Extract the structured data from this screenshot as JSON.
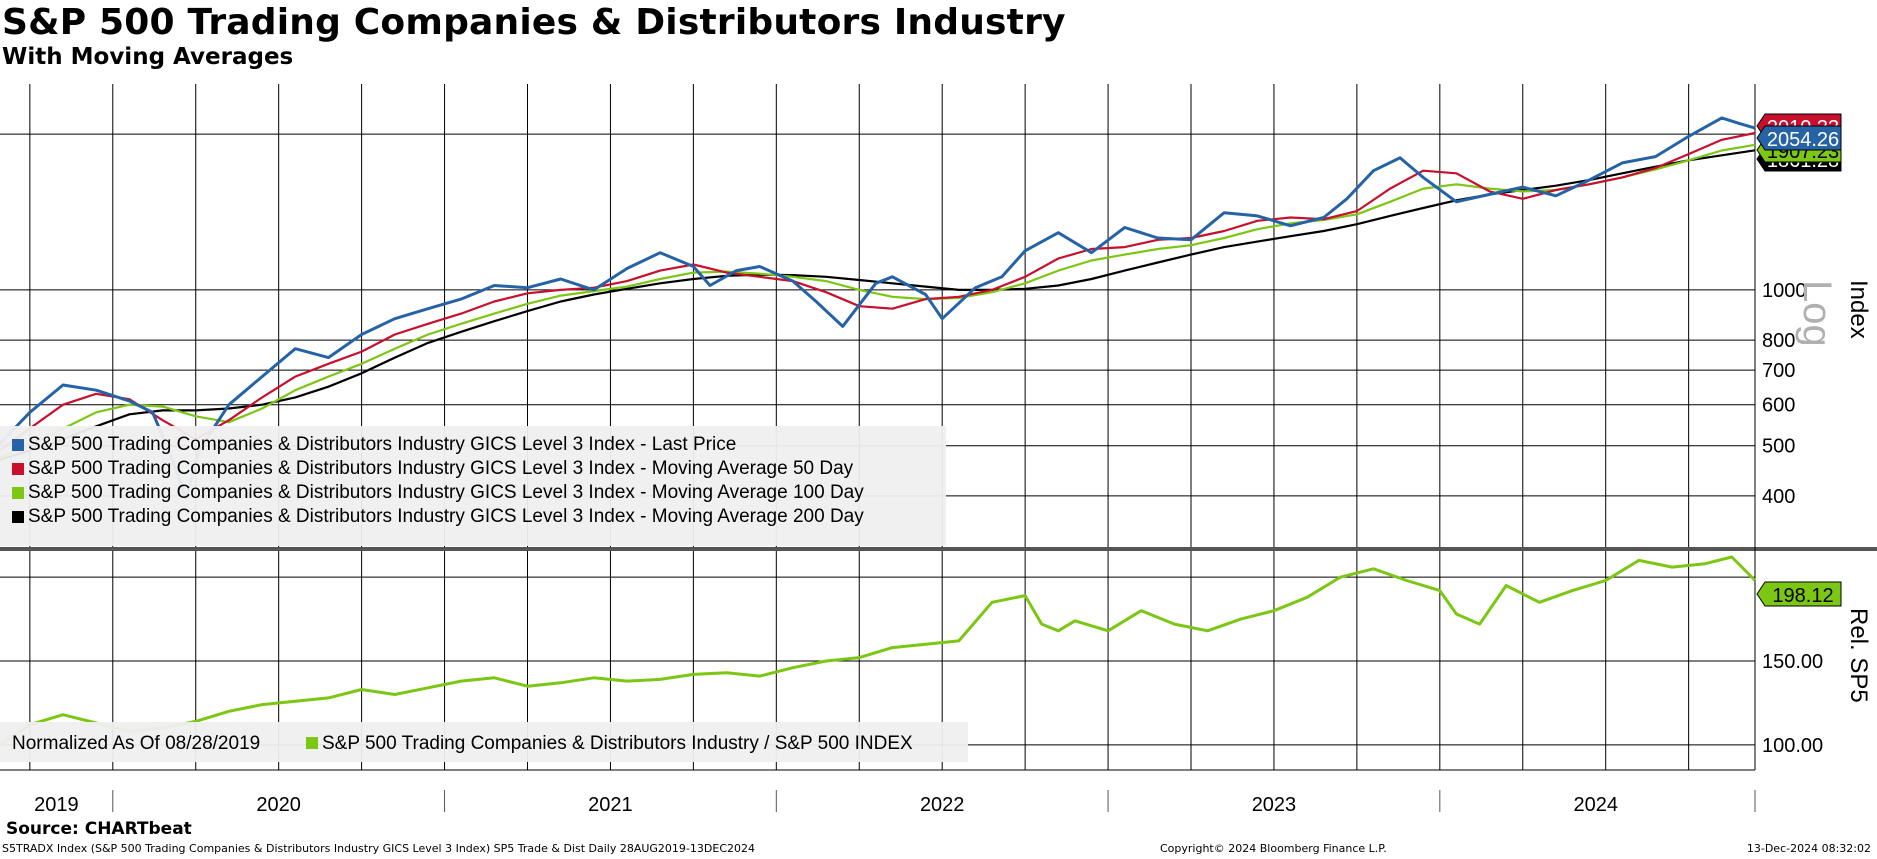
{
  "title": "S&P 500 Trading Companies & Distributors Industry",
  "subtitle": "With Moving Averages",
  "source": "Source: CHARTbeat",
  "footer": {
    "left": "S5TRADX Index (S&P 500 Trading Companies & Distributors Industry GICS Level 3 Index) SP5 Trade & Dist  Daily 28AUG2019-13DEC2024",
    "center": "Copyright© 2024 Bloomberg Finance L.P.",
    "right": "13-Dec-2024 08:32:02"
  },
  "colors": {
    "last_price": "#2563a6",
    "ma50": "#c8102e",
    "ma100": "#7cc614",
    "ma200": "#000000",
    "relative": "#7cc614",
    "grid": "#000000",
    "legend_bg": "#f0f0f0"
  },
  "chart_data": [
    {
      "type": "line",
      "panel": "upper",
      "y_axis_label": "Index",
      "scale_label": "Log",
      "y_scale": "log",
      "ylim": [
        320,
        2500
      ],
      "y_ticks": [
        400,
        500,
        600,
        700,
        800,
        1000
      ],
      "x_range": [
        2019.66,
        2024.95
      ],
      "x_tick_labels": [
        "2019",
        "2020",
        "2021",
        "2022",
        "2023",
        "2024"
      ],
      "grid": true,
      "legend_position": "bottom-left",
      "series": [
        {
          "name": "S&P 500 Trading Companies & Distributors Industry GICS Level 3 Index - Last Price",
          "color": "#2563a6",
          "last_value": "2054.26",
          "x": [
            2019.66,
            2019.75,
            2019.85,
            2019.95,
            2020.05,
            2020.12,
            2020.18,
            2020.22,
            2020.26,
            2020.35,
            2020.45,
            2020.55,
            2020.65,
            2020.75,
            2020.85,
            2020.95,
            2021.05,
            2021.15,
            2021.25,
            2021.35,
            2021.45,
            2021.55,
            2021.65,
            2021.75,
            2021.8,
            2021.88,
            2021.95,
            2022.05,
            2022.12,
            2022.2,
            2022.3,
            2022.35,
            2022.45,
            2022.5,
            2022.6,
            2022.68,
            2022.75,
            2022.85,
            2022.95,
            2023.05,
            2023.15,
            2023.25,
            2023.35,
            2023.45,
            2023.55,
            2023.65,
            2023.72,
            2023.8,
            2023.88,
            2023.95,
            2024.05,
            2024.15,
            2024.25,
            2024.35,
            2024.45,
            2024.55,
            2024.65,
            2024.75,
            2024.85,
            2024.9,
            2024.95
          ],
          "y": [
            505,
            580,
            655,
            640,
            610,
            580,
            470,
            395,
            490,
            600,
            680,
            770,
            740,
            820,
            880,
            920,
            960,
            1020,
            1010,
            1050,
            1000,
            1100,
            1180,
            1110,
            1020,
            1090,
            1110,
            1040,
            950,
            850,
            1030,
            1060,
            980,
            880,
            1010,
            1060,
            1190,
            1290,
            1180,
            1320,
            1260,
            1250,
            1410,
            1390,
            1330,
            1380,
            1500,
            1700,
            1800,
            1650,
            1480,
            1530,
            1580,
            1520,
            1630,
            1760,
            1810,
            1980,
            2150,
            2100,
            2054.26
          ]
        },
        {
          "name": "S&P 500 Trading Companies & Distributors Industry GICS Level 3 Index - Moving Average 50 Day",
          "color": "#c8102e",
          "last_value": "2010.33",
          "x": [
            2019.66,
            2019.75,
            2019.85,
            2019.95,
            2020.05,
            2020.15,
            2020.25,
            2020.35,
            2020.45,
            2020.55,
            2020.65,
            2020.75,
            2020.85,
            2020.95,
            2021.05,
            2021.15,
            2021.25,
            2021.35,
            2021.45,
            2021.55,
            2021.65,
            2021.75,
            2021.85,
            2021.95,
            2022.05,
            2022.15,
            2022.25,
            2022.35,
            2022.45,
            2022.55,
            2022.65,
            2022.75,
            2022.85,
            2022.95,
            2023.05,
            2023.15,
            2023.25,
            2023.35,
            2023.45,
            2023.55,
            2023.65,
            2023.75,
            2023.85,
            2023.95,
            2024.05,
            2024.15,
            2024.25,
            2024.35,
            2024.45,
            2024.55,
            2024.65,
            2024.75,
            2024.85,
            2024.95
          ],
          "y": [
            490,
            540,
            600,
            630,
            615,
            560,
            515,
            560,
            620,
            680,
            720,
            760,
            820,
            860,
            900,
            950,
            985,
            1000,
            1010,
            1040,
            1090,
            1120,
            1080,
            1060,
            1040,
            990,
            930,
            920,
            960,
            970,
            1000,
            1060,
            1150,
            1200,
            1210,
            1250,
            1260,
            1300,
            1360,
            1380,
            1370,
            1420,
            1570,
            1700,
            1680,
            1550,
            1500,
            1560,
            1600,
            1650,
            1720,
            1830,
            1950,
            2010.33
          ]
        },
        {
          "name": "S&P 500 Trading Companies & Distributors Industry GICS Level 3 Index - Moving Average 100 Day",
          "color": "#7cc614",
          "last_value": "1907.23",
          "x": [
            2019.66,
            2019.8,
            2019.95,
            2020.05,
            2020.15,
            2020.25,
            2020.35,
            2020.45,
            2020.55,
            2020.65,
            2020.75,
            2020.85,
            2020.95,
            2021.05,
            2021.15,
            2021.25,
            2021.35,
            2021.45,
            2021.55,
            2021.65,
            2021.75,
            2021.85,
            2021.95,
            2022.05,
            2022.15,
            2022.25,
            2022.35,
            2022.45,
            2022.55,
            2022.65,
            2022.75,
            2022.85,
            2022.95,
            2023.05,
            2023.15,
            2023.25,
            2023.35,
            2023.45,
            2023.55,
            2023.65,
            2023.75,
            2023.85,
            2023.95,
            2024.05,
            2024.15,
            2024.25,
            2024.35,
            2024.45,
            2024.55,
            2024.65,
            2024.75,
            2024.85,
            2024.95
          ],
          "y": [
            475,
            520,
            580,
            600,
            595,
            570,
            555,
            590,
            640,
            680,
            720,
            770,
            820,
            860,
            900,
            940,
            975,
            995,
            1015,
            1050,
            1080,
            1085,
            1075,
            1060,
            1040,
            1000,
            970,
            960,
            965,
            990,
            1030,
            1090,
            1140,
            1170,
            1200,
            1220,
            1260,
            1310,
            1345,
            1365,
            1400,
            1480,
            1570,
            1600,
            1570,
            1550,
            1560,
            1600,
            1650,
            1710,
            1780,
            1860,
            1907.23
          ]
        },
        {
          "name": "S&P 500 Trading Companies & Distributors Industry GICS Level 3 Index - Moving Average 200 Day",
          "color": "#000000",
          "last_value": "1861.28",
          "x": [
            2019.66,
            2019.8,
            2019.95,
            2020.05,
            2020.15,
            2020.25,
            2020.35,
            2020.45,
            2020.55,
            2020.65,
            2020.75,
            2020.85,
            2020.95,
            2021.05,
            2021.15,
            2021.25,
            2021.35,
            2021.45,
            2021.55,
            2021.65,
            2021.75,
            2021.85,
            2021.95,
            2022.05,
            2022.15,
            2022.25,
            2022.35,
            2022.45,
            2022.55,
            2022.65,
            2022.75,
            2022.85,
            2022.95,
            2023.05,
            2023.15,
            2023.25,
            2023.35,
            2023.45,
            2023.55,
            2023.65,
            2023.75,
            2023.85,
            2023.95,
            2024.05,
            2024.15,
            2024.25,
            2024.35,
            2024.45,
            2024.55,
            2024.65,
            2024.75,
            2024.85,
            2024.95
          ],
          "y": [
            470,
            500,
            545,
            575,
            585,
            585,
            590,
            600,
            620,
            650,
            690,
            740,
            790,
            830,
            870,
            910,
            950,
            980,
            1005,
            1030,
            1050,
            1065,
            1070,
            1068,
            1060,
            1045,
            1030,
            1015,
            1000,
            1000,
            1005,
            1020,
            1050,
            1090,
            1130,
            1170,
            1210,
            1240,
            1270,
            1300,
            1340,
            1390,
            1440,
            1490,
            1530,
            1560,
            1590,
            1630,
            1680,
            1730,
            1780,
            1820,
            1861.28
          ]
        }
      ]
    },
    {
      "type": "line",
      "panel": "lower",
      "y_axis_label": "Rel. SP5",
      "ylim": [
        85,
        215
      ],
      "y_ticks": [
        100.0,
        150.0
      ],
      "y_tick_labels": [
        "100.00",
        "150.00"
      ],
      "x_range": [
        2019.66,
        2024.95
      ],
      "grid": true,
      "note": "Normalized As Of 08/28/2019",
      "series": [
        {
          "name": "S&P 500 Trading Companies & Distributors Industry / S&P 500 INDEX",
          "color": "#7cc614",
          "last_value": "198.12",
          "x": [
            2019.66,
            2019.75,
            2019.85,
            2019.95,
            2020.05,
            2020.15,
            2020.25,
            2020.35,
            2020.45,
            2020.55,
            2020.65,
            2020.75,
            2020.85,
            2020.95,
            2021.05,
            2021.15,
            2021.25,
            2021.35,
            2021.45,
            2021.55,
            2021.65,
            2021.75,
            2021.85,
            2021.95,
            2022.05,
            2022.15,
            2022.25,
            2022.35,
            2022.45,
            2022.55,
            2022.65,
            2022.75,
            2022.8,
            2022.85,
            2022.9,
            2023.0,
            2023.1,
            2023.2,
            2023.3,
            2023.4,
            2023.5,
            2023.6,
            2023.7,
            2023.8,
            2023.9,
            2024.0,
            2024.05,
            2024.12,
            2024.2,
            2024.3,
            2024.4,
            2024.5,
            2024.6,
            2024.7,
            2024.8,
            2024.88,
            2024.95
          ],
          "y": [
            100,
            112,
            118,
            113,
            108,
            110,
            114,
            120,
            124,
            126,
            128,
            133,
            130,
            134,
            138,
            140,
            135,
            137,
            140,
            138,
            139,
            142,
            143,
            141,
            146,
            150,
            152,
            158,
            160,
            162,
            185,
            189,
            172,
            168,
            174,
            168,
            180,
            172,
            168,
            175,
            180,
            188,
            200,
            205,
            198,
            192,
            178,
            172,
            195,
            185,
            192,
            198,
            210,
            206,
            208,
            212,
            198.12
          ]
        }
      ]
    }
  ]
}
